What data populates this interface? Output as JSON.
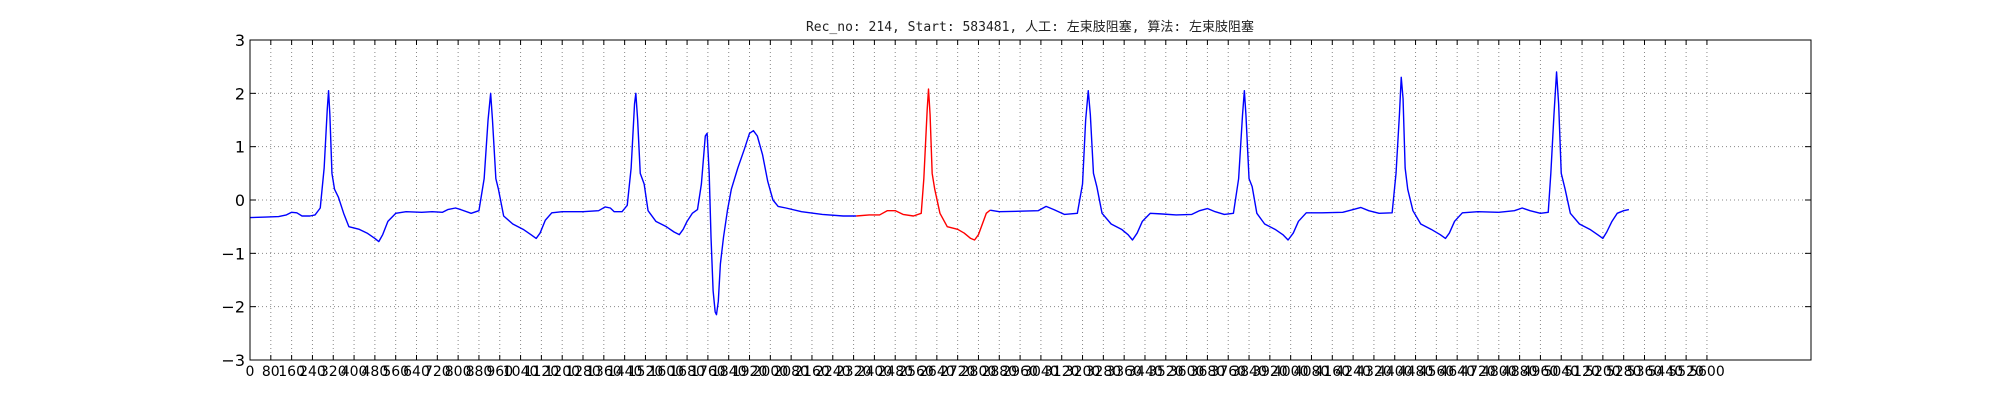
{
  "chart_data": {
    "type": "line",
    "title": "Rec_no: 214, Start: 583481, 人工: 左束肢阻塞, 算法: 左束肢阻塞",
    "xlabel": "",
    "ylabel": "",
    "xlim": [
      0,
      6000
    ],
    "ylim": [
      -3,
      3
    ],
    "grid": true,
    "yticks": [
      3,
      2,
      1,
      0,
      -1,
      -2,
      -3
    ],
    "ytick_labels": [
      "3",
      "2",
      "1",
      "0",
      "−1",
      "−2",
      "−3"
    ],
    "xtick_step": 80,
    "xtick_max": 5600,
    "colors": {
      "normal": "#0000ff",
      "highlight": "#ff0000",
      "grid": "#888888",
      "axes": "#000000"
    },
    "series": [
      {
        "name": "ecg-before",
        "color": "#0000ff",
        "points": [
          [
            0,
            -0.33
          ],
          [
            60,
            -0.32
          ],
          [
            110,
            -0.31
          ],
          [
            140,
            -0.28
          ],
          [
            160,
            -0.23
          ],
          [
            180,
            -0.24
          ],
          [
            200,
            -0.3
          ],
          [
            230,
            -0.3
          ],
          [
            250,
            -0.28
          ],
          [
            270,
            -0.15
          ],
          [
            285,
            0.6
          ],
          [
            297,
            1.7
          ],
          [
            302,
            2.05
          ],
          [
            307,
            1.6
          ],
          [
            315,
            0.5
          ],
          [
            325,
            0.2
          ],
          [
            340,
            0.05
          ],
          [
            360,
            -0.25
          ],
          [
            380,
            -0.5
          ],
          [
            420,
            -0.55
          ],
          [
            450,
            -0.62
          ],
          [
            480,
            -0.72
          ],
          [
            495,
            -0.78
          ],
          [
            510,
            -0.65
          ],
          [
            530,
            -0.4
          ],
          [
            560,
            -0.25
          ],
          [
            600,
            -0.22
          ],
          [
            660,
            -0.23
          ],
          [
            700,
            -0.22
          ],
          [
            740,
            -0.23
          ],
          [
            760,
            -0.18
          ],
          [
            790,
            -0.15
          ],
          [
            810,
            -0.18
          ],
          [
            850,
            -0.25
          ],
          [
            880,
            -0.2
          ],
          [
            900,
            0.4
          ],
          [
            915,
            1.5
          ],
          [
            925,
            2.0
          ],
          [
            932,
            1.5
          ],
          [
            945,
            0.4
          ],
          [
            955,
            0.2
          ],
          [
            975,
            -0.3
          ],
          [
            1010,
            -0.45
          ],
          [
            1050,
            -0.55
          ],
          [
            1080,
            -0.65
          ],
          [
            1100,
            -0.72
          ],
          [
            1115,
            -0.62
          ],
          [
            1135,
            -0.38
          ],
          [
            1160,
            -0.24
          ],
          [
            1200,
            -0.22
          ],
          [
            1280,
            -0.22
          ],
          [
            1340,
            -0.2
          ],
          [
            1365,
            -0.13
          ],
          [
            1385,
            -0.15
          ],
          [
            1400,
            -0.22
          ],
          [
            1430,
            -0.22
          ],
          [
            1450,
            -0.1
          ],
          [
            1465,
            0.6
          ],
          [
            1478,
            1.8
          ],
          [
            1483,
            2.0
          ],
          [
            1490,
            1.5
          ],
          [
            1500,
            0.5
          ],
          [
            1515,
            0.3
          ],
          [
            1530,
            -0.2
          ],
          [
            1560,
            -0.4
          ],
          [
            1600,
            -0.5
          ],
          [
            1630,
            -0.6
          ],
          [
            1650,
            -0.65
          ],
          [
            1665,
            -0.55
          ],
          [
            1680,
            -0.4
          ],
          [
            1700,
            -0.25
          ],
          [
            1720,
            -0.18
          ],
          [
            1735,
            0.3
          ],
          [
            1745,
            0.9
          ],
          [
            1750,
            1.2
          ],
          [
            1757,
            1.25
          ],
          [
            1765,
            0.5
          ],
          [
            1772,
            -0.7
          ],
          [
            1780,
            -1.7
          ],
          [
            1788,
            -2.1
          ],
          [
            1793,
            -2.15
          ],
          [
            1800,
            -1.9
          ],
          [
            1808,
            -1.2
          ],
          [
            1820,
            -0.7
          ],
          [
            1835,
            -0.2
          ],
          [
            1850,
            0.2
          ],
          [
            1875,
            0.6
          ],
          [
            1900,
            0.95
          ],
          [
            1920,
            1.25
          ],
          [
            1935,
            1.3
          ],
          [
            1950,
            1.2
          ],
          [
            1970,
            0.85
          ],
          [
            1990,
            0.35
          ],
          [
            2010,
            0.0
          ],
          [
            2030,
            -0.12
          ],
          [
            2060,
            -0.15
          ],
          [
            2120,
            -0.22
          ],
          [
            2200,
            -0.27
          ],
          [
            2280,
            -0.3
          ],
          [
            2330,
            -0.3
          ]
        ]
      },
      {
        "name": "ecg-highlight",
        "color": "#ff0000",
        "points": [
          [
            2330,
            -0.3
          ],
          [
            2380,
            -0.28
          ],
          [
            2420,
            -0.28
          ],
          [
            2450,
            -0.2
          ],
          [
            2480,
            -0.2
          ],
          [
            2510,
            -0.27
          ],
          [
            2550,
            -0.3
          ],
          [
            2580,
            -0.25
          ],
          [
            2590,
            0.4
          ],
          [
            2603,
            1.7
          ],
          [
            2608,
            2.08
          ],
          [
            2614,
            1.6
          ],
          [
            2622,
            0.5
          ],
          [
            2632,
            0.2
          ],
          [
            2652,
            -0.25
          ],
          [
            2680,
            -0.5
          ],
          [
            2720,
            -0.55
          ],
          [
            2745,
            -0.62
          ],
          [
            2770,
            -0.72
          ],
          [
            2785,
            -0.75
          ],
          [
            2800,
            -0.65
          ],
          [
            2815,
            -0.45
          ],
          [
            2830,
            -0.25
          ],
          [
            2845,
            -0.19
          ]
        ]
      },
      {
        "name": "ecg-after",
        "color": "#0000ff",
        "points": [
          [
            2845,
            -0.19
          ],
          [
            2880,
            -0.22
          ],
          [
            2960,
            -0.21
          ],
          [
            3030,
            -0.2
          ],
          [
            3060,
            -0.12
          ],
          [
            3090,
            -0.18
          ],
          [
            3130,
            -0.27
          ],
          [
            3180,
            -0.25
          ],
          [
            3200,
            0.3
          ],
          [
            3212,
            1.5
          ],
          [
            3222,
            2.05
          ],
          [
            3230,
            1.6
          ],
          [
            3242,
            0.5
          ],
          [
            3255,
            0.25
          ],
          [
            3275,
            -0.25
          ],
          [
            3310,
            -0.45
          ],
          [
            3350,
            -0.55
          ],
          [
            3375,
            -0.65
          ],
          [
            3392,
            -0.75
          ],
          [
            3410,
            -0.62
          ],
          [
            3430,
            -0.4
          ],
          [
            3460,
            -0.25
          ],
          [
            3500,
            -0.26
          ],
          [
            3560,
            -0.28
          ],
          [
            3620,
            -0.27
          ],
          [
            3650,
            -0.2
          ],
          [
            3680,
            -0.16
          ],
          [
            3710,
            -0.22
          ],
          [
            3745,
            -0.27
          ],
          [
            3780,
            -0.25
          ],
          [
            3800,
            0.4
          ],
          [
            3815,
            1.6
          ],
          [
            3822,
            2.05
          ],
          [
            3828,
            1.6
          ],
          [
            3840,
            0.4
          ],
          [
            3852,
            0.25
          ],
          [
            3870,
            -0.25
          ],
          [
            3900,
            -0.45
          ],
          [
            3940,
            -0.55
          ],
          [
            3970,
            -0.65
          ],
          [
            3990,
            -0.75
          ],
          [
            4010,
            -0.62
          ],
          [
            4030,
            -0.4
          ],
          [
            4060,
            -0.24
          ],
          [
            4120,
            -0.24
          ],
          [
            4200,
            -0.23
          ],
          [
            4240,
            -0.18
          ],
          [
            4270,
            -0.14
          ],
          [
            4300,
            -0.2
          ],
          [
            4340,
            -0.25
          ],
          [
            4390,
            -0.24
          ],
          [
            4405,
            0.5
          ],
          [
            4418,
            1.6
          ],
          [
            4425,
            2.3
          ],
          [
            4432,
            1.9
          ],
          [
            4440,
            0.6
          ],
          [
            4450,
            0.2
          ],
          [
            4470,
            -0.2
          ],
          [
            4500,
            -0.45
          ],
          [
            4540,
            -0.55
          ],
          [
            4575,
            -0.65
          ],
          [
            4595,
            -0.72
          ],
          [
            4610,
            -0.62
          ],
          [
            4630,
            -0.4
          ],
          [
            4660,
            -0.24
          ],
          [
            4720,
            -0.22
          ],
          [
            4800,
            -0.23
          ],
          [
            4860,
            -0.2
          ],
          [
            4890,
            -0.15
          ],
          [
            4920,
            -0.2
          ],
          [
            4960,
            -0.25
          ],
          [
            4990,
            -0.23
          ],
          [
            5000,
            0.5
          ],
          [
            5012,
            1.6
          ],
          [
            5022,
            2.4
          ],
          [
            5030,
            1.8
          ],
          [
            5040,
            0.5
          ],
          [
            5055,
            0.2
          ],
          [
            5075,
            -0.25
          ],
          [
            5110,
            -0.45
          ],
          [
            5150,
            -0.55
          ],
          [
            5180,
            -0.65
          ],
          [
            5200,
            -0.72
          ],
          [
            5215,
            -0.6
          ],
          [
            5235,
            -0.4
          ],
          [
            5255,
            -0.25
          ],
          [
            5280,
            -0.2
          ],
          [
            5300,
            -0.18
          ]
        ]
      }
    ]
  }
}
